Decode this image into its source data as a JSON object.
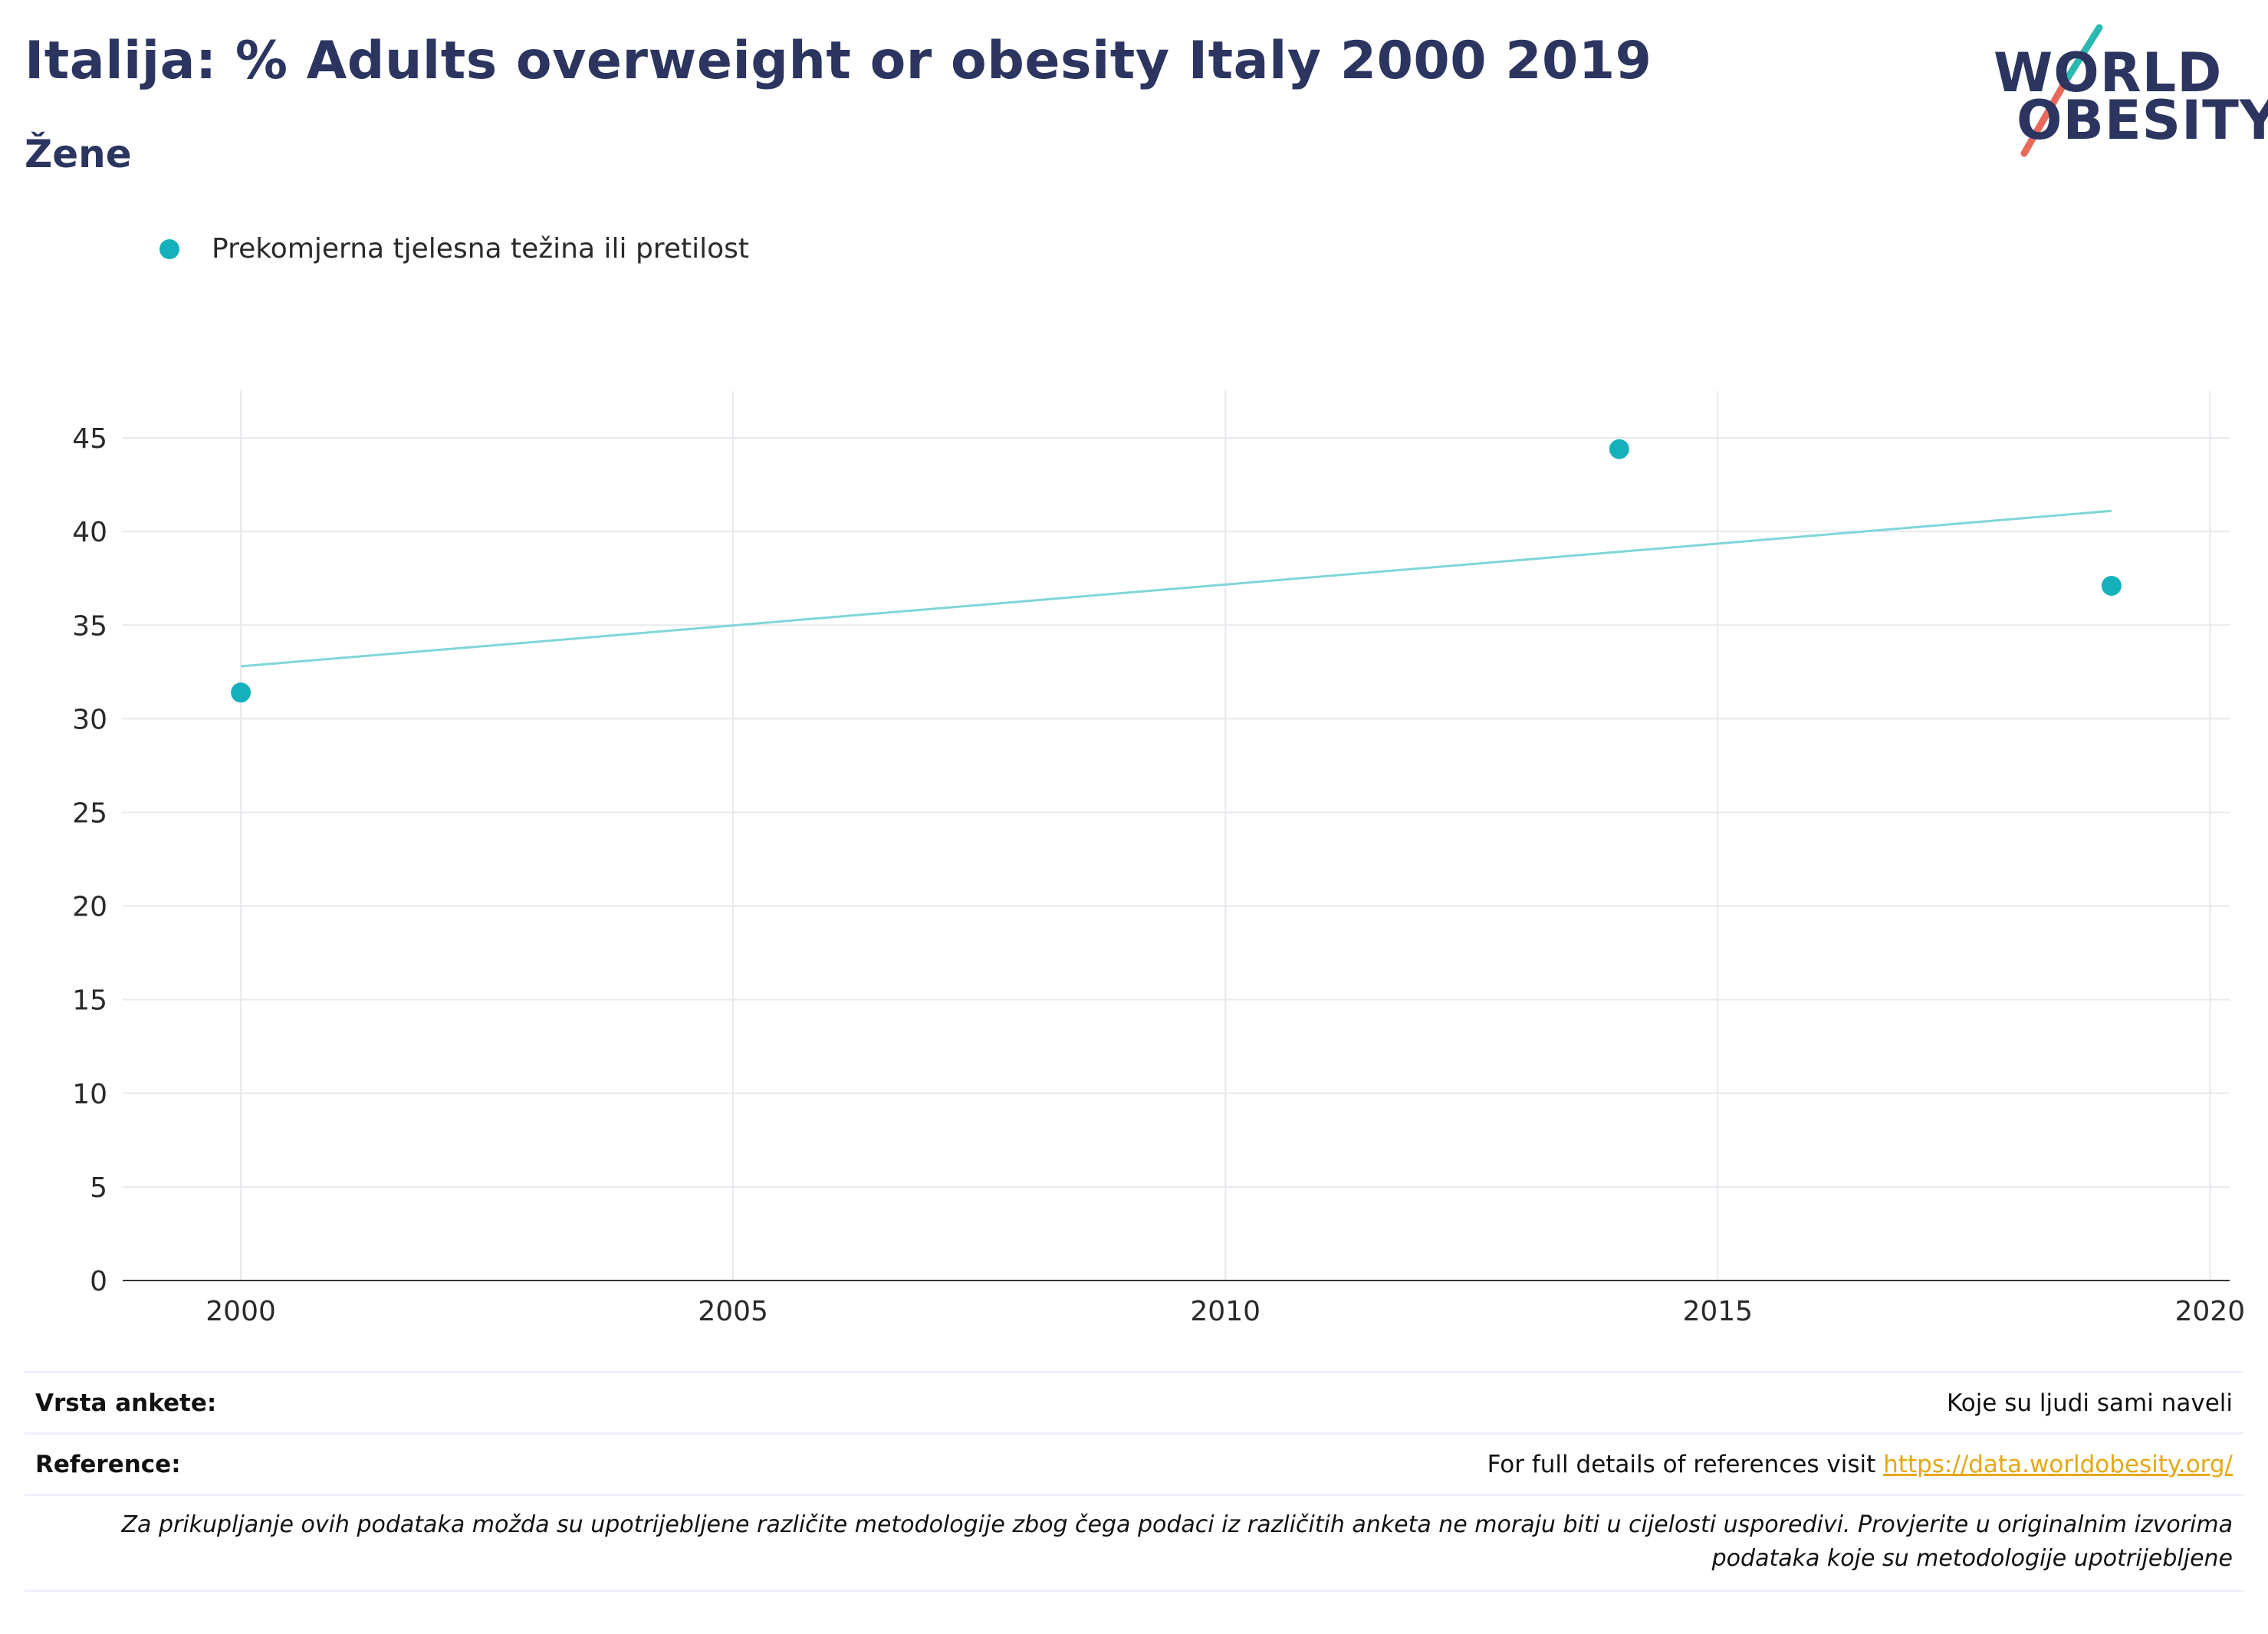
{
  "header": {
    "title": "Italija: % Adults overweight or obesity Italy 2000 2019",
    "subtitle": "Žene"
  },
  "logo": {
    "line1": "WORLD",
    "line2": "OBESITY",
    "accent_teal": "#2bb8b0",
    "accent_red": "#e8685a"
  },
  "chart_data": {
    "type": "scatter",
    "title": "Italija: % Adults overweight or obesity Italy 2000 2019",
    "subtitle": "Žene",
    "xlabel": "",
    "ylabel": "",
    "xlim": [
      1998.8,
      2020.2
    ],
    "ylim": [
      0,
      47.5
    ],
    "x_ticks": [
      2000,
      2005,
      2010,
      2015,
      2020
    ],
    "y_ticks": [
      0,
      5,
      10,
      15,
      20,
      25,
      30,
      35,
      40,
      45
    ],
    "grid": true,
    "legend_position": "top-left",
    "series": [
      {
        "name": "Prekomjerna tjelesna težina ili pretilost",
        "color": "#14b1bb",
        "points": [
          {
            "x": 2000,
            "y": 31.4
          },
          {
            "x": 2014,
            "y": 44.4
          },
          {
            "x": 2019,
            "y": 37.1
          }
        ]
      }
    ],
    "trendline": {
      "color": "#7fd6d9",
      "x": [
        2000,
        2019
      ],
      "y": [
        32.8,
        41.1
      ]
    }
  },
  "footer": {
    "survey_type_label": "Vrsta ankete:",
    "survey_type_value": "Koje su ljudi sami naveli",
    "references_label": "Reference:",
    "references_text": "For full details of references visit",
    "references_link": "https://data.worldobesity.org/",
    "note": "Za prikupljanje ovih podataka možda su upotrijebljene različite metodologije zbog čega podaci iz različitih anketa ne moraju biti u cijelosti usporedivi. Provjerite u originalnim izvorima podataka koje su metodologije upotrijebljene"
  }
}
